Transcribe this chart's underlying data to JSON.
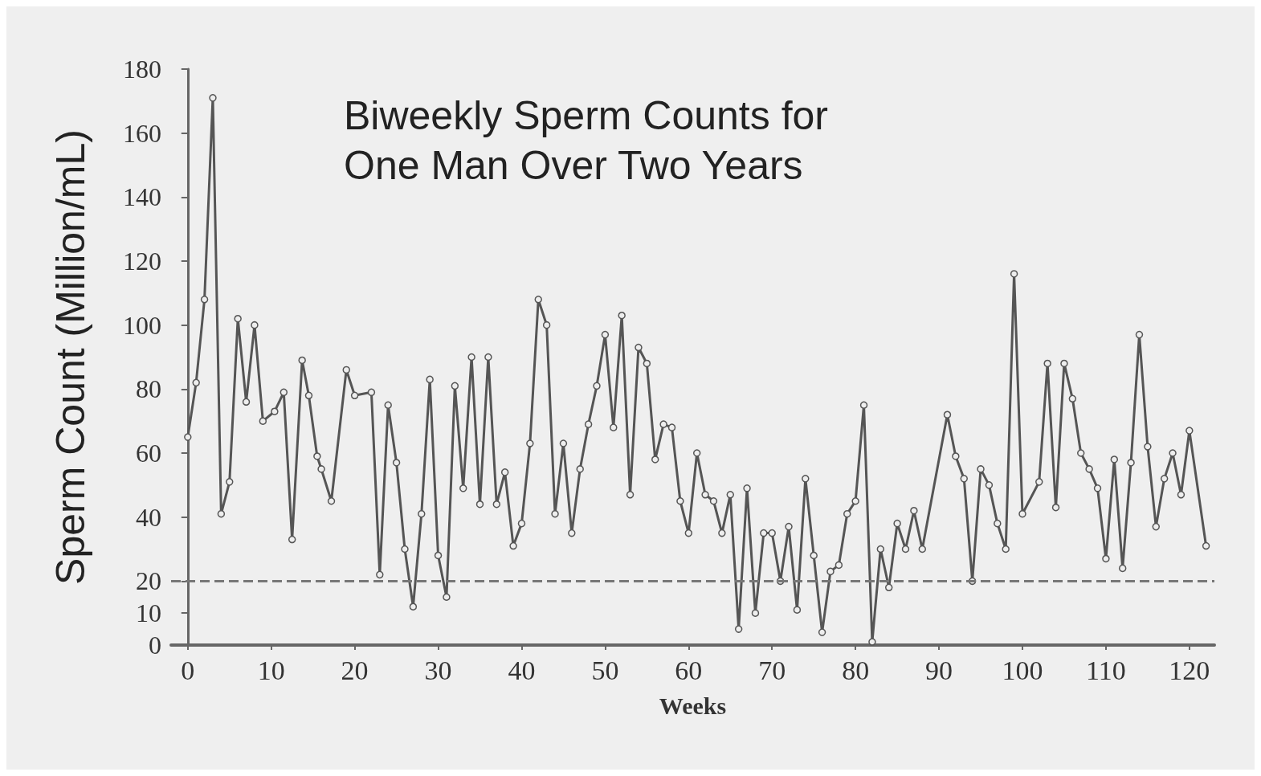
{
  "chart_data": {
    "type": "line",
    "title": "Biweekly Sperm Counts for\nOne Man Over Two Years",
    "xlabel": "Weeks",
    "ylabel": "Sperm Count (Million/mL)",
    "x": [
      0,
      1,
      2,
      3,
      4,
      5,
      6,
      7,
      8,
      9,
      10.4,
      11.5,
      12.5,
      13.7,
      14.5,
      15.5,
      16,
      17.2,
      19,
      20,
      22,
      23,
      24,
      25,
      26,
      27,
      28,
      29,
      30,
      31,
      32,
      33,
      34,
      35,
      36,
      37,
      38,
      39,
      40,
      41,
      42,
      43,
      44,
      45,
      46,
      47,
      48,
      49,
      50,
      51,
      52,
      53,
      54,
      55,
      56,
      57,
      58,
      59,
      60,
      61,
      62,
      63,
      64,
      65,
      66,
      67,
      68,
      69,
      70,
      71,
      72,
      73,
      74,
      75,
      76,
      77,
      78,
      79,
      80,
      81,
      82,
      83,
      84,
      85,
      86,
      87,
      88,
      91,
      92,
      93,
      94,
      95,
      96,
      97,
      98,
      99,
      100,
      102,
      103,
      104,
      105,
      106,
      107,
      108,
      109,
      110,
      111,
      112,
      113,
      114,
      115,
      116,
      117,
      118,
      119,
      120,
      122
    ],
    "series": [
      {
        "color": "#555555",
        "values": [
          65,
          82,
          108,
          171,
          41,
          51,
          102,
          76,
          100,
          70,
          73,
          79,
          33,
          89,
          78,
          59,
          55,
          45,
          86,
          78,
          79,
          22,
          75,
          57,
          30,
          12,
          41,
          83,
          28,
          15,
          81,
          49,
          90,
          44,
          90,
          44,
          54,
          31,
          38,
          63,
          108,
          100,
          41,
          63,
          35,
          55,
          69,
          81,
          97,
          68,
          103,
          47,
          93,
          88,
          58,
          69,
          68,
          45,
          35,
          60,
          47,
          45,
          35,
          47,
          5,
          49,
          10,
          35,
          35,
          20,
          37,
          11,
          52,
          28,
          4,
          23,
          25,
          41,
          45,
          75,
          1,
          30,
          18,
          38,
          30,
          42,
          30,
          72,
          59,
          52,
          20,
          55,
          50,
          38,
          30,
          116,
          41,
          51,
          88,
          43,
          88,
          77,
          60,
          55,
          49,
          27,
          58,
          24,
          57,
          97,
          62,
          37,
          52,
          60,
          47,
          67,
          31
        ]
      }
    ],
    "xlim": [
      -2,
      123
    ],
    "xticks": [
      0,
      10,
      20,
      30,
      40,
      50,
      60,
      70,
      80,
      90,
      100,
      110,
      120
    ],
    "ylim": [
      0,
      180
    ],
    "yticks": [
      0,
      10,
      20,
      40,
      60,
      80,
      100,
      120,
      140,
      160,
      180
    ],
    "ref_lines": [
      {
        "axis": "y",
        "value": 20,
        "line_style": "dashed",
        "color": "#777777"
      }
    ],
    "grid": false,
    "marker": "circle",
    "line_style": "solid"
  }
}
